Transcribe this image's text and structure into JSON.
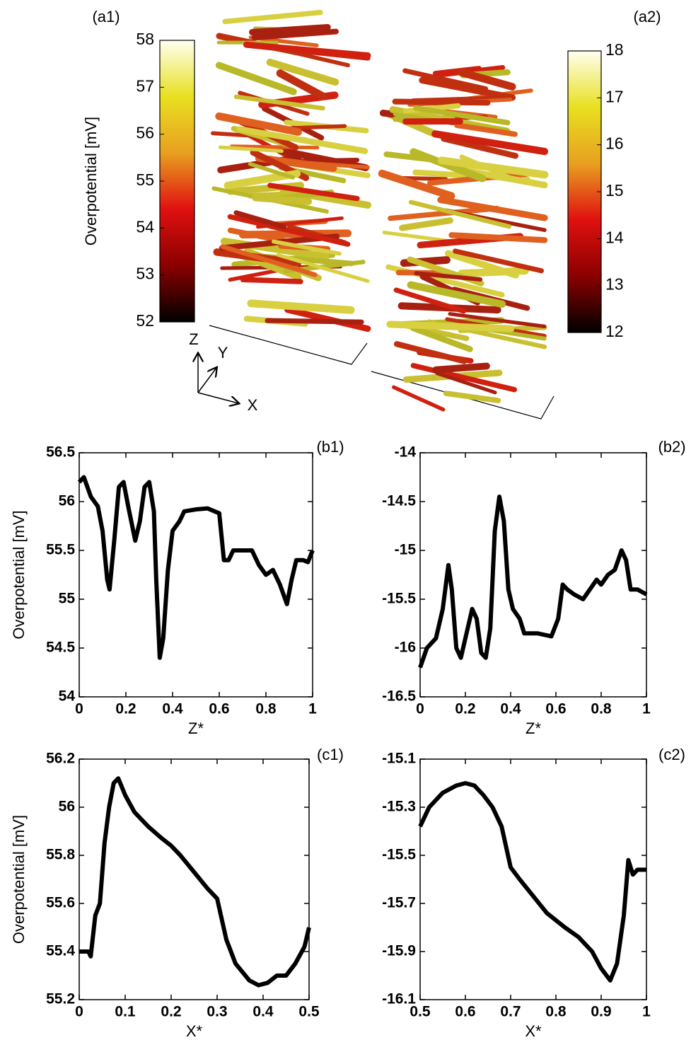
{
  "triad": {
    "z": "Z",
    "y": "Y",
    "x": "X"
  },
  "chart_data": [
    {
      "type": "colorbar",
      "panel_label": "(a1)",
      "y_label": "Overpotential [mV]",
      "ylim": [
        52,
        58
      ],
      "yticks": [
        52,
        53,
        54,
        55,
        56,
        57,
        58
      ],
      "colors": [
        "#000000",
        "#8b0000",
        "#e01010",
        "#e8a020",
        "#e8e020",
        "#fffff0"
      ]
    },
    {
      "type": "colorbar",
      "panel_label": "(a2)",
      "ylim": [
        12,
        18
      ],
      "yticks": [
        12,
        13,
        14,
        15,
        16,
        17,
        18
      ],
      "colors": [
        "#000000",
        "#8b0000",
        "#e01010",
        "#e8a020",
        "#e8e020",
        "#fffff0"
      ]
    },
    {
      "type": "line",
      "panel_label": "(b1)",
      "x_label": "Z*",
      "y_label": "Overpotential [mV]",
      "xlim": [
        0,
        1
      ],
      "xticks": [
        0,
        0.2,
        0.4,
        0.6,
        0.8,
        1
      ],
      "ylim": [
        54,
        56.5
      ],
      "yticks": [
        54,
        54.5,
        55,
        55.5,
        56,
        56.5
      ],
      "series": [
        {
          "color": "#000000",
          "x": [
            0,
            0.02,
            0.05,
            0.08,
            0.1,
            0.12,
            0.13,
            0.15,
            0.17,
            0.19,
            0.21,
            0.24,
            0.26,
            0.28,
            0.3,
            0.32,
            0.33,
            0.345,
            0.36,
            0.38,
            0.4,
            0.43,
            0.45,
            0.5,
            0.55,
            0.6,
            0.62,
            0.64,
            0.66,
            0.7,
            0.74,
            0.77,
            0.8,
            0.83,
            0.86,
            0.89,
            0.91,
            0.93,
            0.96,
            0.98,
            1
          ],
          "values": [
            56.2,
            56.25,
            56.05,
            55.95,
            55.7,
            55.2,
            55.1,
            55.6,
            56.15,
            56.2,
            55.95,
            55.6,
            55.8,
            56.15,
            56.2,
            55.9,
            55.2,
            54.4,
            54.6,
            55.3,
            55.7,
            55.8,
            55.9,
            55.92,
            55.93,
            55.88,
            55.4,
            55.4,
            55.5,
            55.5,
            55.5,
            55.35,
            55.25,
            55.3,
            55.15,
            54.95,
            55.2,
            55.4,
            55.4,
            55.38,
            55.5
          ]
        }
      ]
    },
    {
      "type": "line",
      "panel_label": "(b2)",
      "x_label": "Z*",
      "xlim": [
        0,
        1
      ],
      "xticks": [
        0,
        0.2,
        0.4,
        0.6,
        0.8,
        1
      ],
      "ylim": [
        -16.5,
        -14
      ],
      "yticks": [
        -16.5,
        -16,
        -15.5,
        -15,
        -14.5,
        -14
      ],
      "series": [
        {
          "color": "#000000",
          "x": [
            0,
            0.03,
            0.07,
            0.1,
            0.125,
            0.14,
            0.16,
            0.18,
            0.2,
            0.23,
            0.25,
            0.27,
            0.29,
            0.31,
            0.33,
            0.35,
            0.37,
            0.39,
            0.41,
            0.44,
            0.46,
            0.52,
            0.58,
            0.61,
            0.63,
            0.65,
            0.68,
            0.72,
            0.75,
            0.78,
            0.8,
            0.83,
            0.86,
            0.89,
            0.91,
            0.93,
            0.96,
            1
          ],
          "values": [
            -16.2,
            -16.0,
            -15.9,
            -15.6,
            -15.15,
            -15.4,
            -16.0,
            -16.1,
            -15.9,
            -15.6,
            -15.7,
            -16.05,
            -16.1,
            -15.8,
            -14.8,
            -14.45,
            -14.7,
            -15.4,
            -15.6,
            -15.7,
            -15.85,
            -15.85,
            -15.88,
            -15.7,
            -15.35,
            -15.4,
            -15.45,
            -15.5,
            -15.4,
            -15.3,
            -15.35,
            -15.25,
            -15.2,
            -15.0,
            -15.1,
            -15.4,
            -15.4,
            -15.45
          ]
        }
      ]
    },
    {
      "type": "line",
      "panel_label": "(c1)",
      "x_label": "X*",
      "y_label": "Overpotential [mV]",
      "xlim": [
        0,
        0.5
      ],
      "xticks": [
        0,
        0.1,
        0.2,
        0.3,
        0.4,
        0.5
      ],
      "ylim": [
        55.2,
        56.2
      ],
      "yticks": [
        55.2,
        55.4,
        55.6,
        55.8,
        56,
        56.2
      ],
      "series": [
        {
          "color": "#000000",
          "x": [
            0,
            0.02,
            0.025,
            0.035,
            0.045,
            0.055,
            0.065,
            0.075,
            0.085,
            0.1,
            0.12,
            0.15,
            0.18,
            0.2,
            0.22,
            0.25,
            0.28,
            0.3,
            0.32,
            0.34,
            0.37,
            0.39,
            0.41,
            0.43,
            0.45,
            0.47,
            0.49,
            0.5
          ],
          "values": [
            55.4,
            55.4,
            55.38,
            55.55,
            55.6,
            55.85,
            56.0,
            56.1,
            56.12,
            56.05,
            55.98,
            55.92,
            55.87,
            55.84,
            55.8,
            55.73,
            55.66,
            55.62,
            55.45,
            55.35,
            55.28,
            55.26,
            55.27,
            55.3,
            55.3,
            55.35,
            55.42,
            55.5
          ]
        }
      ]
    },
    {
      "type": "line",
      "panel_label": "(c2)",
      "x_label": "X*",
      "xlim": [
        0.5,
        1
      ],
      "xticks": [
        0.5,
        0.6,
        0.7,
        0.8,
        0.9,
        1
      ],
      "ylim": [
        -16.1,
        -15.1
      ],
      "yticks": [
        -16.1,
        -15.9,
        -15.7,
        -15.5,
        -15.3,
        -15.1
      ],
      "series": [
        {
          "color": "#000000",
          "x": [
            0.5,
            0.52,
            0.55,
            0.58,
            0.6,
            0.62,
            0.64,
            0.66,
            0.68,
            0.7,
            0.72,
            0.75,
            0.78,
            0.82,
            0.85,
            0.88,
            0.9,
            0.92,
            0.935,
            0.95,
            0.96,
            0.97,
            0.98,
            1
          ],
          "values": [
            -15.38,
            -15.3,
            -15.24,
            -15.21,
            -15.2,
            -15.21,
            -15.25,
            -15.3,
            -15.38,
            -15.55,
            -15.6,
            -15.67,
            -15.74,
            -15.8,
            -15.84,
            -15.9,
            -15.97,
            -16.02,
            -15.95,
            -15.75,
            -15.52,
            -15.58,
            -15.56,
            -15.56
          ]
        }
      ]
    }
  ]
}
